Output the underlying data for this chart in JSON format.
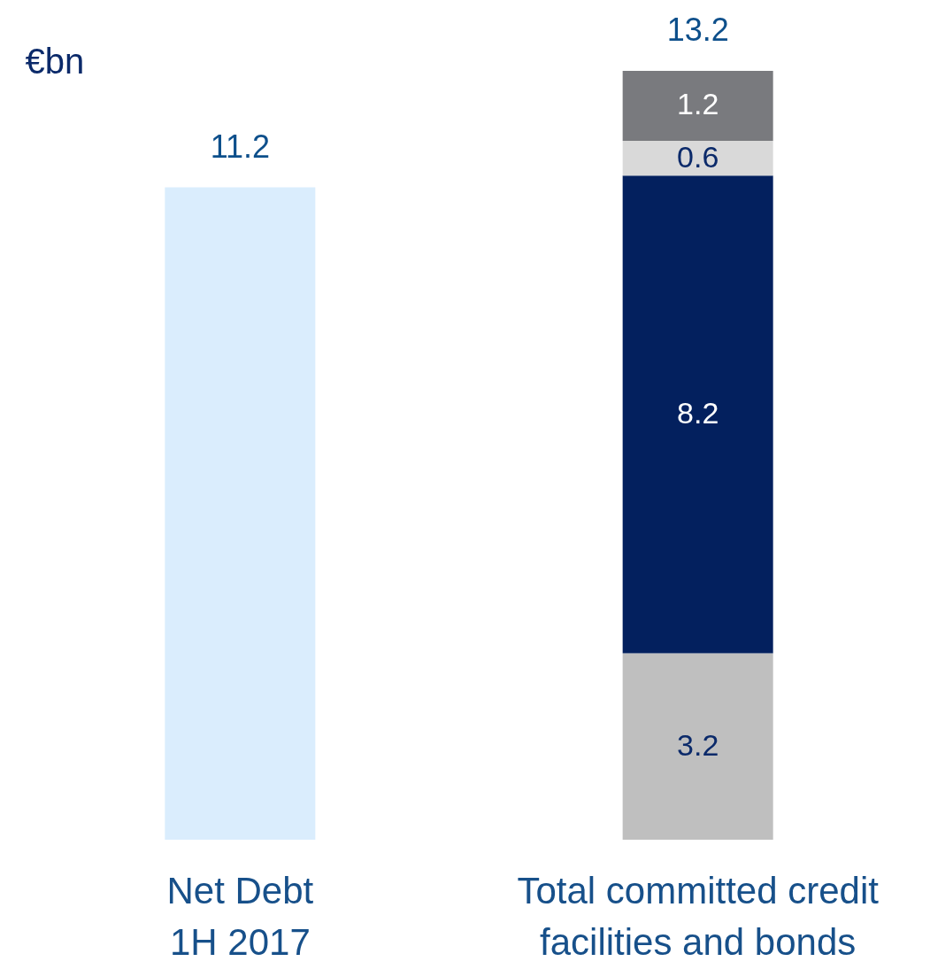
{
  "chart_data": {
    "type": "bar",
    "ylabel": "€bn",
    "categories": [
      "Net Debt 1H 2017",
      "Total committed credit facilities and bonds"
    ],
    "stacked": true,
    "series": [
      {
        "color": "#daedfd",
        "values": [
          11.2,
          null
        ],
        "value_labels": [
          null,
          null
        ]
      },
      {
        "color": "#bfbfbf",
        "values": [
          null,
          3.2
        ],
        "value_labels": [
          null,
          "3.2"
        ]
      },
      {
        "color": "#03205e",
        "values": [
          null,
          8.2
        ],
        "value_labels": [
          null,
          "8.2"
        ]
      },
      {
        "color": "#d9d9d9",
        "values": [
          null,
          0.6
        ],
        "value_labels": [
          null,
          "0.6"
        ]
      },
      {
        "color": "#797a7e",
        "values": [
          null,
          1.2
        ],
        "value_labels": [
          null,
          "1.2"
        ]
      }
    ],
    "totals": [
      "11.2",
      "13.2"
    ],
    "ylim": [
      0,
      13.2
    ],
    "tick_labels": "x",
    "grid": false,
    "legend": false
  }
}
